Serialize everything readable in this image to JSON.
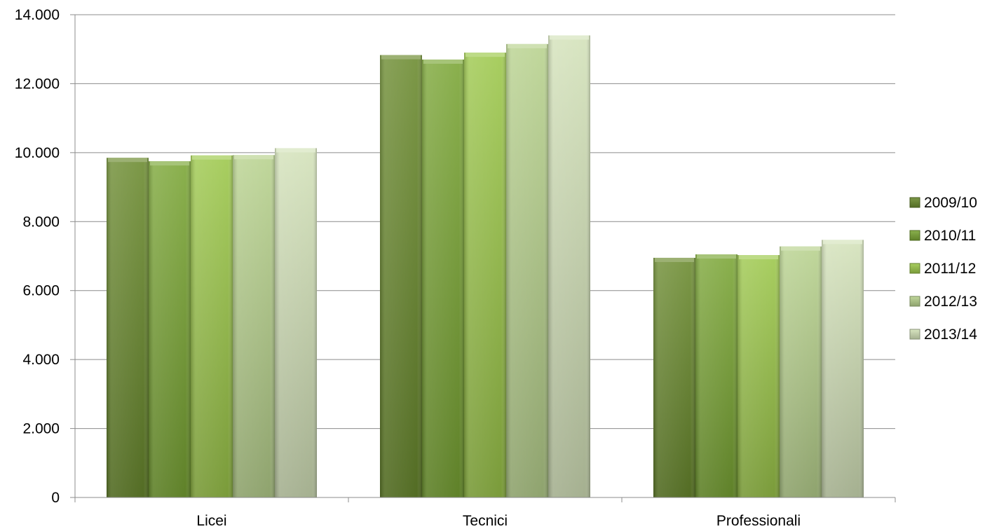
{
  "chart_data": {
    "type": "bar",
    "categories": [
      "Licei",
      "Tecnici",
      "Professionali"
    ],
    "series": [
      {
        "name": "2009/10",
        "values": [
          9850,
          12830,
          6950
        ],
        "color": "#6a8a2e"
      },
      {
        "name": "2010/11",
        "values": [
          9750,
          12700,
          7050
        ],
        "color": "#7aa535"
      },
      {
        "name": "2011/12",
        "values": [
          9920,
          12900,
          7030
        ],
        "color": "#9cc74a"
      },
      {
        "name": "2012/13",
        "values": [
          9930,
          13150,
          7280
        ],
        "color": "#b7d18d"
      },
      {
        "name": "2013/14",
        "values": [
          10130,
          13400,
          7470
        ],
        "color": "#d3e2b8"
      }
    ],
    "ylim": [
      0,
      14000
    ],
    "yticks": [
      0,
      2000,
      4000,
      6000,
      8000,
      10000,
      12000,
      14000
    ],
    "ytick_labels": [
      "0",
      "2.000",
      "4.000",
      "6.000",
      "8.000",
      "10.000",
      "12.000",
      "14.000"
    ],
    "grid": true,
    "legend_position": "right",
    "title": "",
    "xlabel": "",
    "ylabel": ""
  }
}
